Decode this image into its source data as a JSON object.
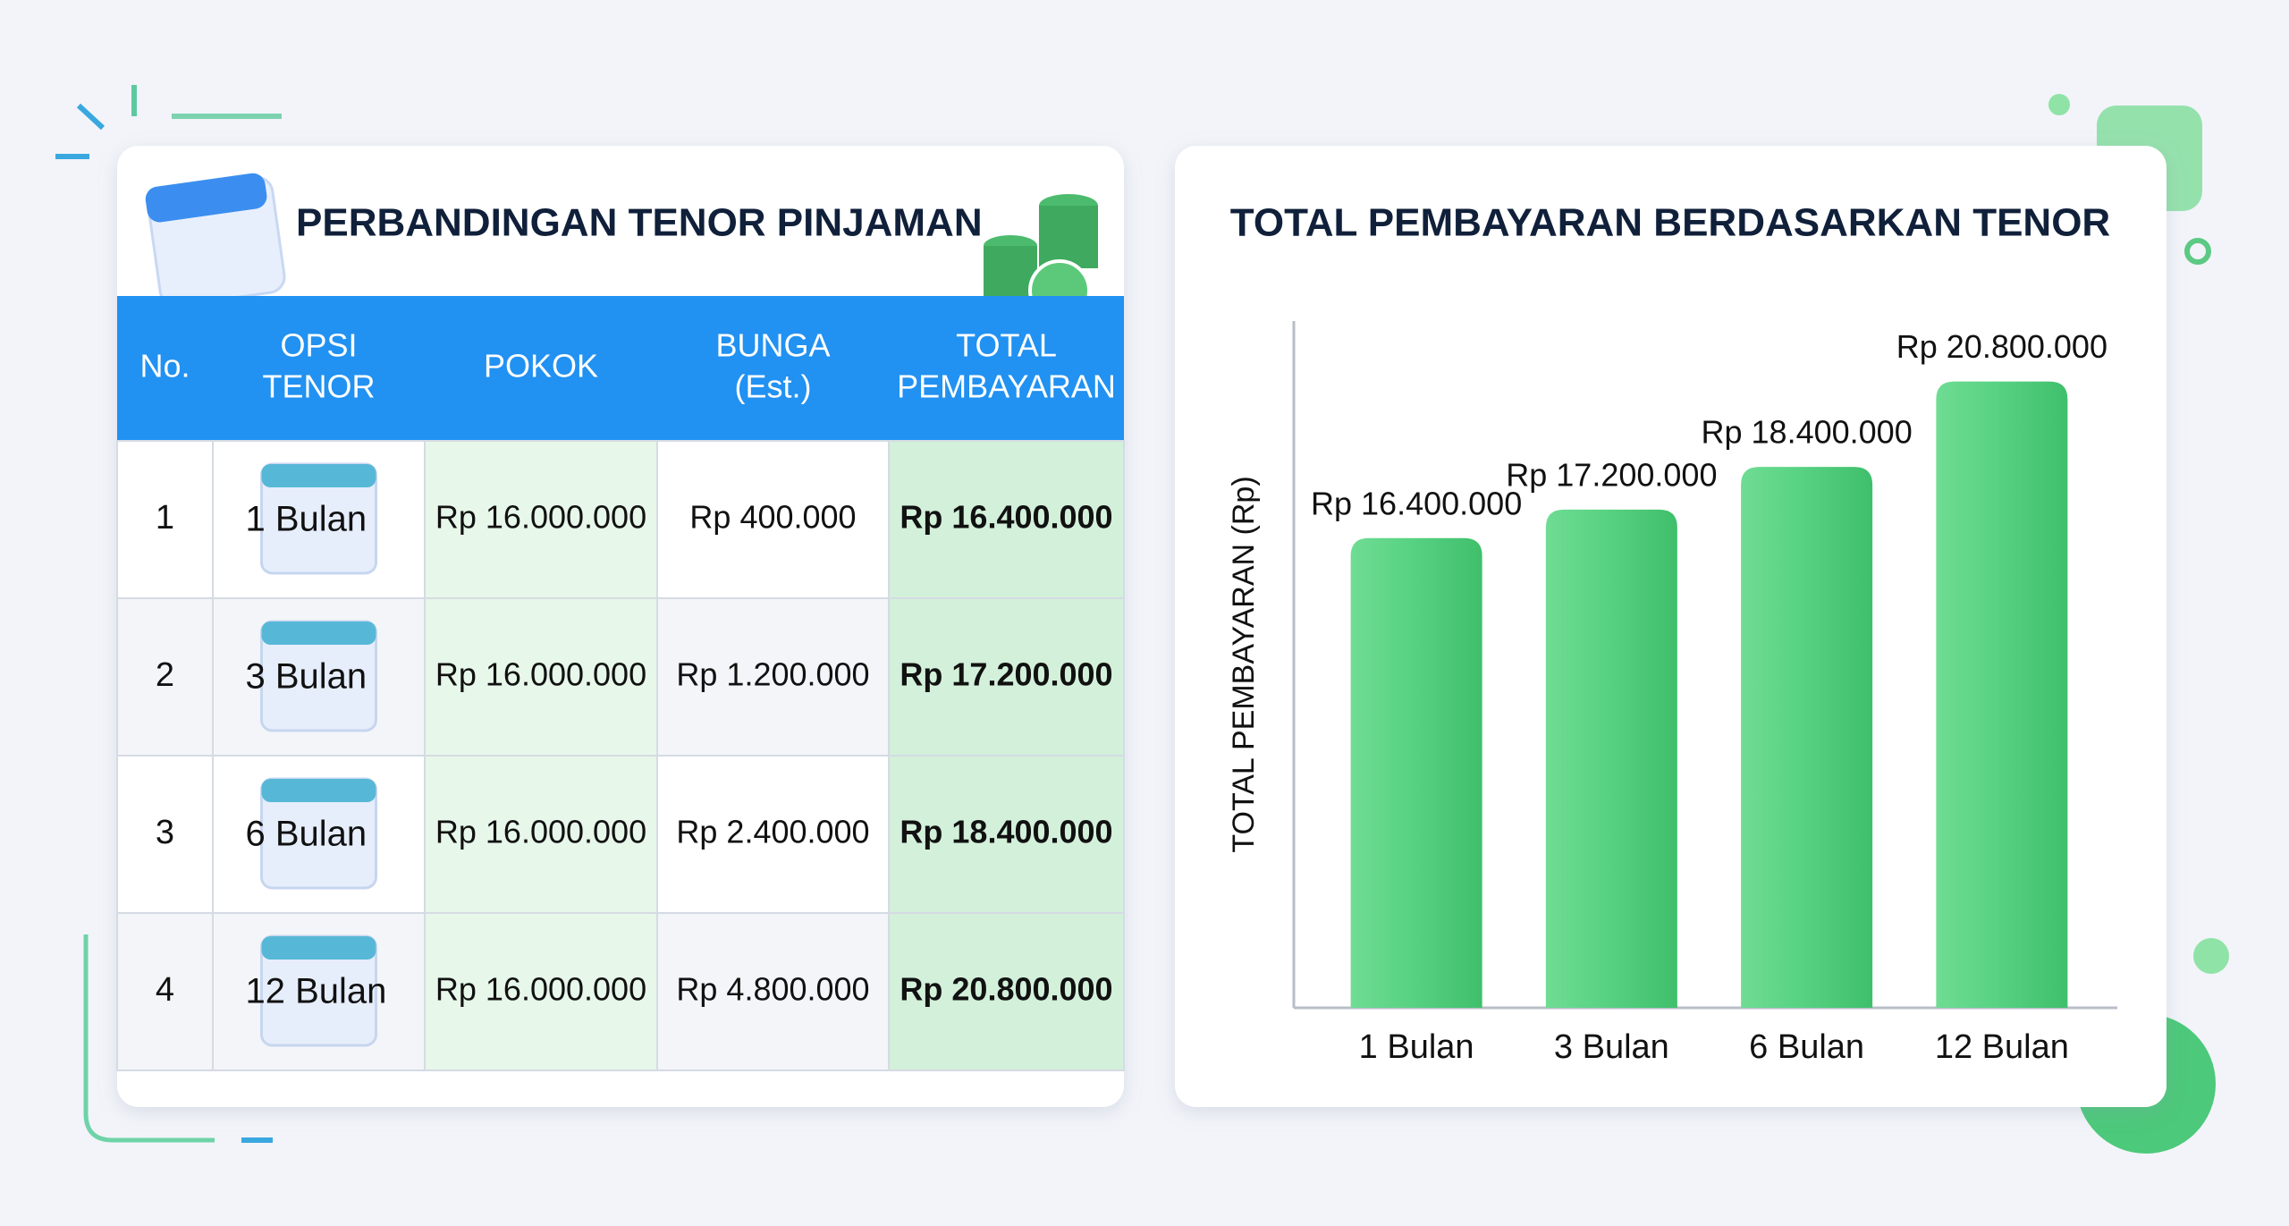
{
  "table": {
    "title": "PERBANDINGAN TENOR PINJAMAN",
    "header": [
      [
        "No."
      ],
      [
        "OPSI",
        "TENOR"
      ],
      [
        "POKOK"
      ],
      [
        "BUNGA",
        "(Est.)"
      ],
      [
        "TOTAL",
        "PEMBAYARAN"
      ]
    ],
    "rows": [
      [
        "1",
        "1 Bulan",
        "Rp 16.000.000",
        "Rp 400.000",
        "Rp 16.400.000"
      ],
      [
        "2",
        "3 Bulan",
        "Rp 16.000.000",
        "Rp 1.200.000",
        "Rp 17.200.000"
      ],
      [
        "3",
        "6 Bulan",
        "Rp 16.000.000",
        "Rp 2.400.000",
        "Rp 18.400.000"
      ],
      [
        "4",
        "12 Bulan",
        "Rp 16.000.000",
        "Rp 4.800.000",
        "Rp 20.800.000"
      ]
    ]
  },
  "chart_data": {
    "type": "bar",
    "title": "TOTAL PEMBAYARAN BERDASARKAN TENOR",
    "y_label": "TOTAL PEMBAYARAN (Rp)",
    "categories": [
      "1 Bulan",
      "3 Bulan",
      "6 Bulan",
      "12 Bulan"
    ],
    "values": [
      16400000,
      17200000,
      18400000,
      20800000
    ],
    "value_labels": [
      "Rp 16.400.000",
      "Rp 17.200.000",
      "Rp 18.400.000",
      "Rp 20.800.000"
    ],
    "color": "#4cc97a",
    "ylim": [
      3200000,
      22500000
    ]
  }
}
